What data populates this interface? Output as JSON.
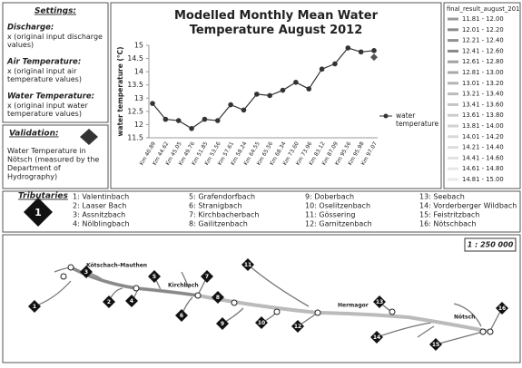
{
  "settings": {
    "title": "Settings:",
    "items": [
      {
        "label": "Discharge:",
        "text": "x (original input discharge values)"
      },
      {
        "label": "Air Temperature:",
        "text": "x (original input air temperature values)"
      },
      {
        "label": "Water Temperature:",
        "text": "x (original input water temperature values)"
      }
    ]
  },
  "validation": {
    "title": "Validation:",
    "text": "Water Temperature in Nötsch (measured by the Department of Hydrography)"
  },
  "chart_data": {
    "type": "line",
    "title": "Modelled Monthly Mean Water Temperature August 2012",
    "y_label": "water temperature (°C)",
    "categories": [
      "Km 40.89",
      "Km 44.62",
      "Km 45.05",
      "Km 49.76",
      "Km 51.85",
      "Km 53.56",
      "Km 57.61",
      "Km 58.24",
      "Km 64.55",
      "Km 65.56",
      "Km 68.34",
      "Km 73.60",
      "Km 73.96",
      "Km 83.12",
      "Km 87.09",
      "Km 95.56",
      "Km 95.98",
      "Km 97.07"
    ],
    "series": [
      {
        "name": "water temperature",
        "color": "#333333",
        "values": [
          12.8,
          12.2,
          12.15,
          11.85,
          12.2,
          12.15,
          12.75,
          12.55,
          13.15,
          13.1,
          13.3,
          13.6,
          13.35,
          14.1,
          14.3,
          14.9,
          14.75,
          14.8
        ]
      }
    ],
    "validation_values": [
      null,
      null,
      null,
      null,
      null,
      null,
      null,
      null,
      null,
      null,
      null,
      null,
      null,
      null,
      null,
      null,
      null,
      14.55
    ],
    "ylim": [
      11.5,
      15
    ],
    "yticks": [
      11.5,
      12,
      12.5,
      13,
      13.5,
      14,
      14.5,
      15
    ],
    "grid": false
  },
  "legend": {
    "title": "final_result_august_201",
    "items": [
      {
        "label": "11.81 - 12.00",
        "color": "#9a9a9a"
      },
      {
        "label": "12.01 - 12.20",
        "color": "#8c8c8c"
      },
      {
        "label": "12.21 - 12.40",
        "color": "#909090"
      },
      {
        "label": "12.41 - 12.60",
        "color": "#888888"
      },
      {
        "label": "12.61 - 12.80",
        "color": "#a0a0a0"
      },
      {
        "label": "12.81 - 13.00",
        "color": "#a8a8a8"
      },
      {
        "label": "13.01 - 13.20",
        "color": "#b4b4b4"
      },
      {
        "label": "13.21 - 13.40",
        "color": "#bcbcbc"
      },
      {
        "label": "13.41 - 13.60",
        "color": "#c4c4c4"
      },
      {
        "label": "13.61 - 13.80",
        "color": "#cccccc"
      },
      {
        "label": "13.81 - 14.00",
        "color": "#d2d2d2"
      },
      {
        "label": "14.01 - 14.20",
        "color": "#d8d8d8"
      },
      {
        "label": "14.21 - 14.40",
        "color": "#dddddd"
      },
      {
        "label": "14.41 - 14.60",
        "color": "#e2e2e2"
      },
      {
        "label": "14.61 - 14.80",
        "color": "#e6e6e6"
      },
      {
        "label": "14.81 - 15.00",
        "color": "#eaeaea"
      }
    ]
  },
  "tributaries": {
    "title": "Tributaries",
    "symbol": "1",
    "items": [
      "1: Valentinbach",
      "2: Laaser Bach",
      "3: Assnitzbach",
      "4: Nölblingbach",
      "5: Grafendorfbach",
      "6: Stranigbach",
      "7: Kirchbacherbach",
      "8: Gailitzenbach",
      "9: Doberbach",
      "10: Oselitzenbach",
      "11: Gössering",
      "12: Garnitzenbach",
      "13: Seebach",
      "14: Vorderberger Wildbach",
      "15: Feistritzbach",
      "16: Nötschbach"
    ]
  },
  "map": {
    "scale": "1 : 250 000",
    "places": [
      "Kötschach-Mauthen",
      "Kirchbach",
      "Hermagor",
      "Nötsch"
    ],
    "markers": [
      "1",
      "2",
      "3",
      "4",
      "5",
      "6",
      "7",
      "8",
      "9",
      "10",
      "11",
      "12",
      "13",
      "14",
      "15",
      "16"
    ]
  }
}
